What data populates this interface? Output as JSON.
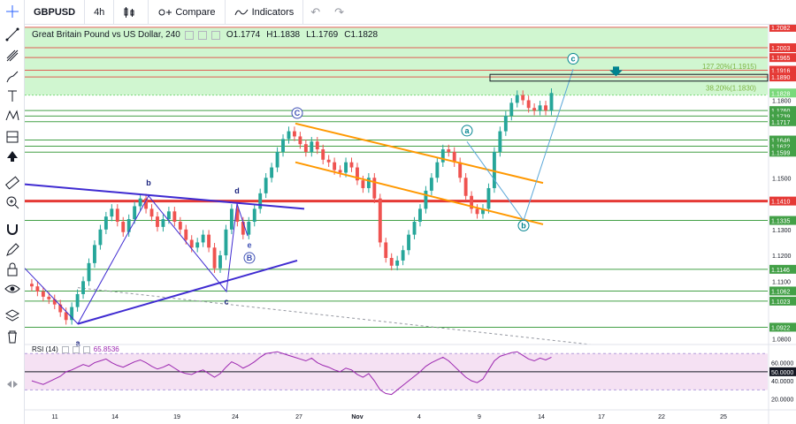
{
  "toolbar": {
    "symbol": "GBPUSD",
    "interval": "4h",
    "compare_label": "Compare",
    "indicators_label": "Indicators"
  },
  "legend": {
    "title": "Great Britain Pound vs US Dollar, 240",
    "open_label": "O",
    "open": "1.1774",
    "high_label": "H",
    "high": "1.1838",
    "low_label": "L",
    "low": "1.1769",
    "close_label": "C",
    "close": "1.1828"
  },
  "rsi_legend": {
    "name": "RSI (14)",
    "value": "65.8536"
  },
  "colors": {
    "up": "#26a69a",
    "down": "#ef5350",
    "resistance": "#e53935",
    "support": "#43a047",
    "zone": "#c8f5c8",
    "channel": "#ff9800",
    "wedge": "#3f2bd1",
    "wave": "#5aa7d8",
    "rsi": "#9c27b0",
    "rsi_band": "#f3d9f0"
  },
  "chart_data": {
    "type": "candlestick",
    "title": "Great Britain Pound vs US Dollar, 240",
    "ylim": [
      1.0862,
      1.2092
    ],
    "x_tick_labels": [
      "11",
      "14",
      "19",
      "24",
      "27",
      "Nov",
      "4",
      "9",
      "14",
      "17",
      "22",
      "25"
    ],
    "horizontal_levels": [
      {
        "value": 1.2082,
        "kind": "resistance",
        "label": "1.2082"
      },
      {
        "value": 1.2003,
        "kind": "resistance",
        "label": "1.2003"
      },
      {
        "value": 1.1965,
        "kind": "resistance",
        "label": "1.1965"
      },
      {
        "value": 1.1916,
        "kind": "resistance",
        "label": "1.1916"
      },
      {
        "value": 1.189,
        "kind": "resistance",
        "label": "1.1890"
      },
      {
        "value": 1.1828,
        "kind": "last",
        "label": "1.1828"
      },
      {
        "value": 1.176,
        "kind": "support",
        "label": "1.1760"
      },
      {
        "value": 1.1739,
        "kind": "support",
        "label": "1.1739"
      },
      {
        "value": 1.1717,
        "kind": "support",
        "label": "1.1717"
      },
      {
        "value": 1.1646,
        "kind": "support",
        "label": "1.1646"
      },
      {
        "value": 1.1622,
        "kind": "support",
        "label": "1.1622"
      },
      {
        "value": 1.1599,
        "kind": "support",
        "label": "1.1599"
      },
      {
        "value": 1.141,
        "kind": "key",
        "label": "1.1410"
      },
      {
        "value": 1.1335,
        "kind": "support",
        "label": "1.1335"
      },
      {
        "value": 1.1146,
        "kind": "support",
        "label": "1.1146"
      },
      {
        "value": 1.1062,
        "kind": "support",
        "label": "1.1062"
      },
      {
        "value": 1.1023,
        "kind": "support",
        "label": "1.1023"
      },
      {
        "value": 1.0922,
        "kind": "support",
        "label": "1.0922"
      }
    ],
    "axis_ticks": [
      "1.1800",
      "1.1500",
      "1.1300",
      "1.1200",
      "1.1100",
      "1.0800"
    ],
    "fib_labels": [
      {
        "text": "127.20%(1.1915)",
        "value": 1.1915
      },
      {
        "text": "38.20%(1.1830)",
        "value": 1.183
      }
    ],
    "wave_labels": [
      "a",
      "b",
      "c",
      "d",
      "e",
      "B",
      "C",
      "a",
      "b",
      "c"
    ],
    "closes": [
      1.108,
      1.106,
      1.104,
      1.103,
      1.101,
      1.098,
      1.095,
      1.1,
      1.105,
      1.11,
      1.117,
      1.124,
      1.13,
      1.135,
      1.138,
      1.133,
      1.129,
      1.134,
      1.139,
      1.142,
      1.138,
      1.135,
      1.131,
      1.134,
      1.137,
      1.133,
      1.13,
      1.126,
      1.123,
      1.125,
      1.128,
      1.123,
      1.115,
      1.12,
      1.13,
      1.138,
      1.133,
      1.128,
      1.133,
      1.138,
      1.144,
      1.15,
      1.154,
      1.16,
      1.165,
      1.168,
      1.166,
      1.163,
      1.16,
      1.164,
      1.161,
      1.157,
      1.156,
      1.153,
      1.152,
      1.156,
      1.154,
      1.149,
      1.146,
      1.15,
      1.142,
      1.125,
      1.119,
      1.116,
      1.118,
      1.122,
      1.128,
      1.133,
      1.138,
      1.145,
      1.15,
      1.156,
      1.161,
      1.16,
      1.156,
      1.15,
      1.143,
      1.138,
      1.136,
      1.138,
      1.146,
      1.16,
      1.168,
      1.174,
      1.179,
      1.182,
      1.18,
      1.177,
      1.176,
      1.178,
      1.176,
      1.1828
    ],
    "rsi": {
      "name": "RSI (14)",
      "value": 65.8536,
      "levels": [
        70,
        50,
        30
      ],
      "axis_ticks": [
        "60.0000",
        "50.0000",
        "40.0000",
        "20.0000"
      ],
      "values": [
        40,
        38,
        36,
        39,
        42,
        45,
        50,
        52,
        55,
        58,
        56,
        60,
        62,
        64,
        60,
        57,
        55,
        58,
        61,
        63,
        60,
        56,
        53,
        55,
        58,
        54,
        50,
        48,
        47,
        50,
        52,
        48,
        44,
        48,
        55,
        61,
        58,
        54,
        57,
        61,
        66,
        70,
        71,
        72,
        70,
        68,
        66,
        64,
        62,
        65,
        60,
        57,
        55,
        52,
        50,
        54,
        52,
        47,
        44,
        48,
        40,
        30,
        26,
        25,
        30,
        35,
        40,
        45,
        50,
        56,
        60,
        63,
        66,
        62,
        56,
        50,
        44,
        40,
        38,
        42,
        52,
        62,
        67,
        69,
        71,
        72,
        68,
        64,
        62,
        65,
        63,
        66
      ]
    }
  }
}
